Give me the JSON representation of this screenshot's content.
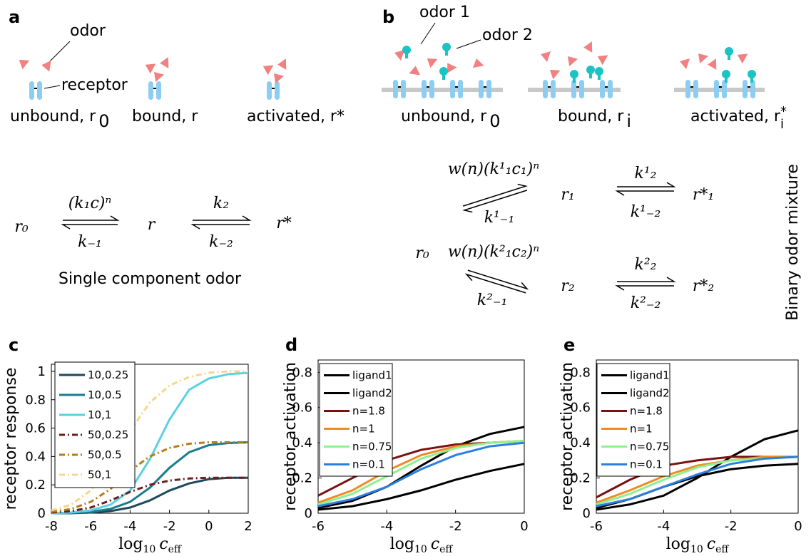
{
  "panels": {
    "a": {
      "label": "a",
      "odor": "odor",
      "receptor": "receptor",
      "states": [
        {
          "text": "unbound, r",
          "sub": "0"
        },
        {
          "text": "bound, r"
        },
        {
          "text": "activated, r*"
        }
      ],
      "scheme": {
        "r0": "r₀",
        "rate_on": "(k₁c)ⁿ",
        "rate_off": "k₋₁",
        "r": "r",
        "k2": "k₂",
        "km2": "k₋₂",
        "rstar": "r*"
      },
      "caption": "Single component odor"
    },
    "b": {
      "label": "b",
      "odor1": "odor 1",
      "odor2": "odor 2",
      "states": [
        {
          "text": "unbound, r",
          "sub": "0"
        },
        {
          "text": "bound, r",
          "sub": "i"
        },
        {
          "text": "activated, r",
          "sup": "*",
          "sub": "i"
        }
      ],
      "scheme": {
        "r0": "r₀",
        "rate1_on": "w(n)(k¹₁c₁)ⁿ",
        "rate1_off": "k¹₋₁",
        "r1": "r₁",
        "k12": "k¹₂",
        "k1m2": "k¹₋₂",
        "r1star": "r*₁",
        "rate2_on": "w(n)(k²₁c₂)ⁿ",
        "rate2_off": "k²₋₁",
        "r2": "r₂",
        "k22": "k²₂",
        "k2m2": "k²₋₂",
        "r2star": "r*₂"
      },
      "caption": "Binary odor mixture"
    }
  },
  "chart_data": [
    {
      "type": "line",
      "label": "c",
      "ylabel": "receptor response",
      "xlabel": {
        "log": "log",
        "base": "10",
        "var": "c",
        "sub": "eff"
      },
      "x": [
        -8,
        -7,
        -6,
        -5,
        -4,
        -3,
        -2,
        -1,
        0,
        1,
        2
      ],
      "xlim": [
        -8,
        2
      ],
      "xticks": [
        -8,
        -6,
        -4,
        -2,
        0,
        2
      ],
      "ylim": [
        0,
        1.05
      ],
      "yticks": [
        0,
        0.2,
        0.4,
        0.6,
        0.8,
        1
      ],
      "series": [
        {
          "name": "10,0.25",
          "color": "#1d4a5c",
          "dash": "solid",
          "values": [
            0,
            0,
            0.005,
            0.015,
            0.04,
            0.09,
            0.16,
            0.21,
            0.24,
            0.25,
            0.25
          ]
        },
        {
          "name": "10,0.5",
          "color": "#1a7b8e",
          "dash": "solid",
          "values": [
            0,
            0.002,
            0.01,
            0.03,
            0.08,
            0.18,
            0.32,
            0.43,
            0.48,
            0.495,
            0.5
          ]
        },
        {
          "name": "10,1",
          "color": "#5ad1e2",
          "dash": "solid",
          "values": [
            0,
            0.005,
            0.02,
            0.06,
            0.16,
            0.38,
            0.66,
            0.87,
            0.95,
            0.98,
            0.99
          ]
        },
        {
          "name": "50,0.25",
          "color": "#6b1d1d",
          "dash": "dashdot",
          "values": [
            0.005,
            0.015,
            0.04,
            0.09,
            0.15,
            0.2,
            0.23,
            0.245,
            0.25,
            0.25,
            0.25
          ]
        },
        {
          "name": "50,0.5",
          "color": "#b37c1c",
          "dash": "dashdot",
          "values": [
            0.01,
            0.03,
            0.08,
            0.17,
            0.3,
            0.4,
            0.46,
            0.49,
            0.5,
            0.5,
            0.5
          ]
        },
        {
          "name": "50,1",
          "color": "#f6d68c",
          "dash": "dashdot",
          "values": [
            0.02,
            0.06,
            0.16,
            0.34,
            0.58,
            0.78,
            0.9,
            0.96,
            0.99,
            1,
            1
          ]
        }
      ]
    },
    {
      "type": "line",
      "label": "d",
      "ylabel": "receptor activation",
      "xlabel": {
        "log": "log",
        "base": "10",
        "var": "c",
        "sub": "eff"
      },
      "x": [
        -6,
        -5,
        -4,
        -3,
        -2,
        -1,
        0
      ],
      "xlim": [
        -6,
        0
      ],
      "xticks": [
        -6,
        -4,
        -2,
        0
      ],
      "ylim": [
        0,
        0.87
      ],
      "yticks": [
        0,
        0.2,
        0.4,
        0.6,
        0.8
      ],
      "series": [
        {
          "name": "ligand1",
          "color": "#000000",
          "dash": "solid",
          "values": [
            0.03,
            0.07,
            0.15,
            0.27,
            0.38,
            0.45,
            0.49
          ]
        },
        {
          "name": "ligand2",
          "color": "#000000",
          "dash": "solid",
          "values": [
            0.02,
            0.04,
            0.08,
            0.13,
            0.19,
            0.24,
            0.28
          ]
        },
        {
          "name": "n=1.8",
          "color": "#7a1010",
          "dash": "solid",
          "values": [
            0.1,
            0.2,
            0.3,
            0.36,
            0.39,
            0.4,
            0.41
          ]
        },
        {
          "name": "n=1",
          "color": "#f08a24",
          "dash": "solid",
          "values": [
            0.06,
            0.13,
            0.24,
            0.33,
            0.38,
            0.4,
            0.41
          ]
        },
        {
          "name": "n=0.75",
          "color": "#8ef08e",
          "dash": "solid",
          "values": [
            0.05,
            0.11,
            0.21,
            0.31,
            0.37,
            0.4,
            0.41
          ]
        },
        {
          "name": "n=0.1",
          "color": "#2a7fe0",
          "dash": "solid",
          "values": [
            0.04,
            0.08,
            0.15,
            0.25,
            0.33,
            0.38,
            0.4
          ]
        }
      ]
    },
    {
      "type": "line",
      "label": "e",
      "ylabel": "receptor activation",
      "xlabel": {
        "log": "log",
        "base": "10",
        "var": "c",
        "sub": "eff"
      },
      "x": [
        -6,
        -5,
        -4,
        -3,
        -2,
        -1,
        0
      ],
      "xlim": [
        -6,
        0
      ],
      "xticks": [
        -6,
        -4,
        -2,
        0
      ],
      "ylim": [
        0,
        0.87
      ],
      "yticks": [
        0,
        0.2,
        0.4,
        0.6,
        0.8
      ],
      "series": [
        {
          "name": "ligand1",
          "color": "#000000",
          "dash": "solid",
          "values": [
            0.02,
            0.05,
            0.1,
            0.2,
            0.32,
            0.42,
            0.47
          ]
        },
        {
          "name": "ligand2",
          "color": "#000000",
          "dash": "solid",
          "values": [
            0.03,
            0.08,
            0.15,
            0.21,
            0.25,
            0.27,
            0.28
          ]
        },
        {
          "name": "n=1.8",
          "color": "#7a1010",
          "dash": "solid",
          "values": [
            0.09,
            0.19,
            0.27,
            0.3,
            0.32,
            0.32,
            0.32
          ]
        },
        {
          "name": "n=1",
          "color": "#f08a24",
          "dash": "solid",
          "values": [
            0.06,
            0.13,
            0.21,
            0.27,
            0.3,
            0.32,
            0.32
          ]
        },
        {
          "name": "n=0.75",
          "color": "#8ef08e",
          "dash": "solid",
          "values": [
            0.05,
            0.11,
            0.19,
            0.26,
            0.3,
            0.31,
            0.32
          ]
        },
        {
          "name": "n=0.1",
          "color": "#2a7fe0",
          "dash": "solid",
          "values": [
            0.04,
            0.08,
            0.15,
            0.22,
            0.28,
            0.31,
            0.32
          ]
        }
      ]
    }
  ]
}
